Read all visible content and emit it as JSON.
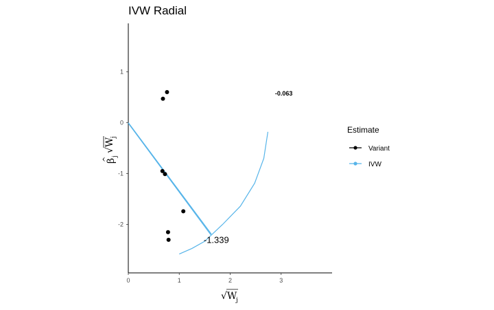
{
  "chart_data": {
    "type": "scatter",
    "title": "IVW Radial",
    "xlim": [
      0,
      4
    ],
    "ylim": [
      -2.95,
      1.95
    ],
    "x_ticks": [
      0,
      1,
      2,
      3
    ],
    "y_ticks": [
      1,
      0,
      -1,
      -2
    ],
    "x_tick_labels": [
      "0",
      "1",
      "2",
      "3"
    ],
    "y_tick_labels": [
      "1",
      "0",
      "-1",
      "-2"
    ],
    "grid": false,
    "legend": {
      "title": "Estimate",
      "position": "right",
      "items": [
        {
          "label": "Variant",
          "color": "#000000"
        },
        {
          "label": "IVW",
          "color": "#56B4E9"
        }
      ]
    },
    "series": [
      {
        "name": "Variant",
        "color": "#000000",
        "points": [
          {
            "x": 0.76,
            "y": 0.6
          },
          {
            "x": 0.68,
            "y": 0.47
          },
          {
            "x": 0.67,
            "y": -0.95
          },
          {
            "x": 0.72,
            "y": -1.01
          },
          {
            "x": 1.08,
            "y": -1.74
          },
          {
            "x": 0.78,
            "y": -2.15
          },
          {
            "x": 0.79,
            "y": -2.3
          }
        ]
      },
      {
        "name": "IVW",
        "color": "#56B4E9",
        "line_from_origin_end": {
          "x": 1.63,
          "y": -2.19
        },
        "line_from_origin_parallel_end": {
          "x": 1.62,
          "y": -2.19
        },
        "arc": [
          {
            "x": 1.0,
            "y": -2.58
          },
          {
            "x": 1.25,
            "y": -2.47
          },
          {
            "x": 1.5,
            "y": -2.33
          },
          {
            "x": 1.85,
            "y": -2.0
          },
          {
            "x": 2.2,
            "y": -1.64
          },
          {
            "x": 2.48,
            "y": -1.19
          },
          {
            "x": 2.66,
            "y": -0.7
          },
          {
            "x": 2.74,
            "y": -0.18
          }
        ]
      }
    ],
    "annotations": [
      {
        "text": "-0.063",
        "x": 2.88,
        "y": 0.53
      },
      {
        "text": "-1.339",
        "x": 1.48,
        "y": -2.36
      }
    ],
    "x_label_text": "√W",
    "x_label_sub": "j",
    "y_label_hat": "^",
    "y_label_beta": "β",
    "y_label_sub": "j",
    "y_label_sqrt": "√W",
    "y_label_sqrt_sub": "j"
  }
}
